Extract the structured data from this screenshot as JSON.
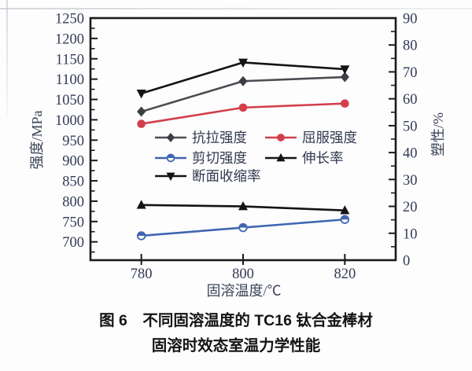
{
  "figure_caption": {
    "line1": "图 6　不同固溶温度的 TC16 钛合金棒材",
    "line2": "固溶时效态室温力学性能"
  },
  "chart_data": {
    "type": "line",
    "title": "",
    "x": [
      780,
      800,
      820
    ],
    "x_tick_labels": [
      "780",
      "800",
      "820"
    ],
    "xlabel": "固溶温度/℃",
    "x_range": [
      770,
      830
    ],
    "grid": false,
    "legend_position": "inside-middle-left",
    "left_axis": {
      "label": "强度/MPa",
      "range": [
        655,
        1250
      ],
      "ticks": [
        700,
        750,
        800,
        850,
        900,
        950,
        1000,
        1050,
        1100,
        1150,
        1200,
        1250
      ],
      "minor_step": 25
    },
    "right_axis": {
      "label": "塑性/%",
      "range": [
        0,
        90
      ],
      "ticks": [
        0,
        10,
        20,
        30,
        40,
        50,
        60,
        70,
        80,
        90
      ],
      "minor_step": 5
    },
    "series": [
      {
        "id": "tensile-strength",
        "name": "抗拉强度",
        "axis": "left",
        "marker": "diamond",
        "color": "#4b4d52",
        "marker_color": "#3c3e44",
        "values": [
          1020,
          1095,
          1105
        ]
      },
      {
        "id": "yield-strength",
        "name": "屈服强度",
        "axis": "left",
        "marker": "circle",
        "color": "#d23f4a",
        "marker_color": "#d23f4a",
        "values": [
          990,
          1030,
          1040
        ]
      },
      {
        "id": "shear-strength",
        "name": "剪切强度",
        "axis": "left",
        "marker": "circle-half",
        "color": "#4066b0",
        "marker_color": "#4066b0",
        "values": [
          715,
          735,
          755
        ]
      },
      {
        "id": "elongation",
        "name": "伸长率",
        "axis": "right",
        "marker": "triangle-up",
        "color": "#141414",
        "marker_color": "#141414",
        "values": [
          20.5,
          20,
          18.5
        ]
      },
      {
        "id": "reduction-of-area",
        "name": "断面收缩率",
        "axis": "right",
        "marker": "triangle-down",
        "color": "#141414",
        "marker_color": "#141414",
        "values": [
          62,
          73.5,
          71
        ]
      }
    ],
    "legend_columns": [
      [
        0,
        2,
        4
      ],
      [
        1,
        3
      ]
    ],
    "axis_color": "#1b1b1d"
  }
}
